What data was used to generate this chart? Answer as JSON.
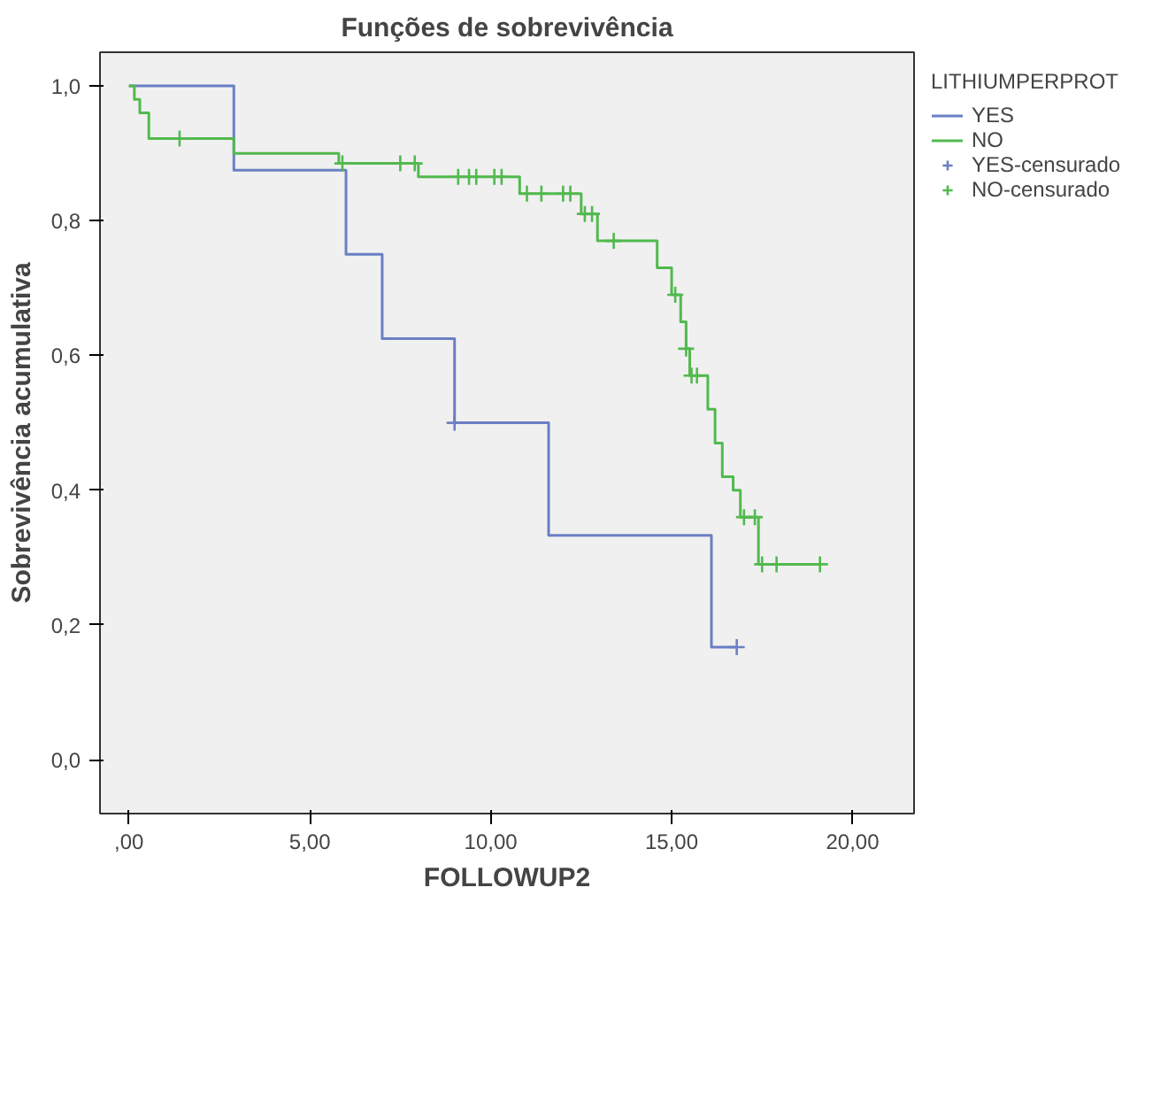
{
  "chart_data": {
    "type": "step",
    "title": "Funções de sobrevivência",
    "xlabel": "FOLLOWUP2",
    "ylabel": "Sobrevivência acumulativa",
    "legend_title": "LITHIUMPERPROT",
    "legend": "right",
    "grid": false,
    "marker": "none",
    "xlim": [
      -0.8,
      21.7
    ],
    "ylim": [
      -0.08,
      1.05
    ],
    "xticks": [
      {
        "value": 0,
        "label": ",00"
      },
      {
        "value": 5,
        "label": "5,00"
      },
      {
        "value": 10,
        "label": "10,00"
      },
      {
        "value": 15,
        "label": "15,00"
      },
      {
        "value": 20,
        "label": "20,00"
      }
    ],
    "yticks": [
      {
        "value": 0,
        "label": "0,0"
      },
      {
        "value": 0.2,
        "label": "0,2"
      },
      {
        "value": 0.4,
        "label": "0,4"
      },
      {
        "value": 0.6,
        "label": "0,6"
      },
      {
        "value": 0.8,
        "label": "0,8"
      },
      {
        "value": 1.0,
        "label": "1,0"
      }
    ],
    "series": [
      {
        "name": "YES",
        "color": "#6b7fc4",
        "x": [
          0,
          2.9,
          6.0,
          7.0,
          9.0,
          11.6,
          16.1,
          16.8
        ],
        "values": [
          1.0,
          0.875,
          0.75,
          0.625,
          0.5,
          0.333,
          0.167,
          0.167
        ]
      },
      {
        "name": "NO",
        "color": "#52b94e",
        "x": [
          0,
          0.15,
          0.3,
          0.55,
          2.9,
          5.8,
          8.0,
          10.8,
          12.5,
          12.95,
          14.6,
          15.0,
          15.25,
          15.4,
          15.5,
          16.0,
          16.2,
          16.4,
          16.7,
          16.9,
          17.4,
          19.1
        ],
        "values": [
          1.0,
          0.98,
          0.96,
          0.922,
          0.9,
          0.885,
          0.865,
          0.84,
          0.81,
          0.77,
          0.73,
          0.69,
          0.65,
          0.61,
          0.57,
          0.52,
          0.47,
          0.42,
          0.4,
          0.36,
          0.29,
          0.29
        ]
      },
      {
        "name": "YES-censurado",
        "type": "scatter",
        "marker": "cross",
        "color": "#6b7fc4",
        "x": [
          9.0,
          16.8
        ],
        "values": [
          0.5,
          0.167
        ]
      },
      {
        "name": "NO-censurado",
        "type": "scatter",
        "marker": "cross",
        "color": "#52b94e",
        "x": [
          1.4,
          5.9,
          7.5,
          7.9,
          9.1,
          9.4,
          9.6,
          10.1,
          10.3,
          11.0,
          11.4,
          12.0,
          12.2,
          12.6,
          12.8,
          13.4,
          15.1,
          15.4,
          15.55,
          15.7,
          17.0,
          17.3,
          17.5,
          17.9,
          19.1
        ],
        "values": [
          0.922,
          0.885,
          0.885,
          0.885,
          0.865,
          0.865,
          0.865,
          0.865,
          0.865,
          0.84,
          0.84,
          0.84,
          0.84,
          0.81,
          0.81,
          0.77,
          0.69,
          0.61,
          0.57,
          0.57,
          0.36,
          0.36,
          0.29,
          0.29,
          0.29
        ]
      }
    ]
  }
}
